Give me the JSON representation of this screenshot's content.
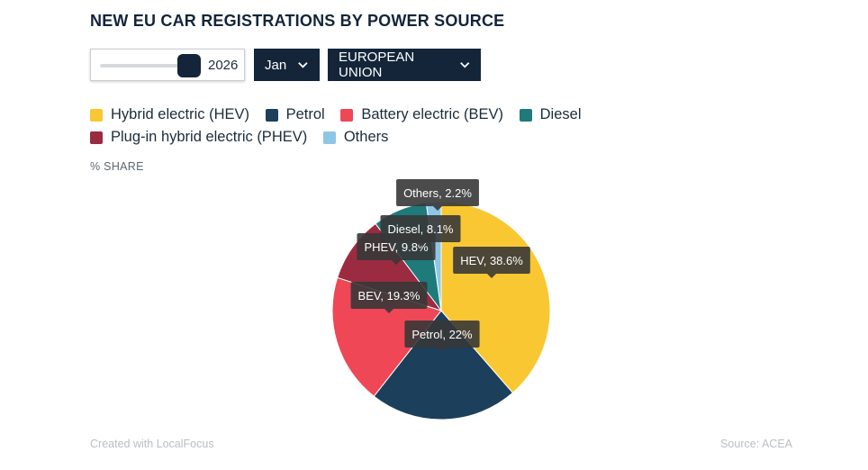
{
  "title": "NEW EU CAR REGISTRATIONS BY POWER SOURCE",
  "controls": {
    "year": "2026",
    "month": "Jan",
    "region": "EUROPEAN UNION"
  },
  "legend": [
    {
      "label": "Hybrid electric (HEV)",
      "color": "#f9c731"
    },
    {
      "label": "Petrol",
      "color": "#1c3f5c"
    },
    {
      "label": "Battery electric (BEV)",
      "color": "#ef4756"
    },
    {
      "label": "Diesel",
      "color": "#1f7a7a"
    },
    {
      "label": "Plug-in hybrid electric (PHEV)",
      "color": "#9a2b40"
    },
    {
      "label": "Others",
      "color": "#8ec6e6"
    }
  ],
  "unit_label": "% SHARE",
  "footer": {
    "credit": "Created with LocalFocus",
    "source": "Source:  ACEA"
  },
  "chart_data": {
    "type": "pie",
    "title": "NEW EU CAR REGISTRATIONS BY POWER SOURCE",
    "unit": "% SHARE",
    "slices": [
      {
        "name": "Hybrid electric (HEV)",
        "short": "HEV",
        "value": 38.6,
        "color": "#f9c731",
        "label": "HEV, 38.6%"
      },
      {
        "name": "Petrol",
        "short": "Petrol",
        "value": 22,
        "color": "#1c3f5c",
        "label": "Petrol, 22%"
      },
      {
        "name": "Battery electric (BEV)",
        "short": "BEV",
        "value": 19.3,
        "color": "#ef4756",
        "label": "BEV, 19.3%"
      },
      {
        "name": "Plug-in hybrid electric (PHEV)",
        "short": "PHEV",
        "value": 9.8,
        "color": "#9a2b40",
        "label": "PHEV, 9.8%"
      },
      {
        "name": "Diesel",
        "short": "Diesel",
        "value": 8.1,
        "color": "#1f7a7a",
        "label": "Diesel, 8.1%"
      },
      {
        "name": "Others",
        "short": "Others",
        "value": 2.2,
        "color": "#8ec6e6",
        "label": "Others, 2.2%"
      }
    ],
    "legend_position": "top"
  }
}
